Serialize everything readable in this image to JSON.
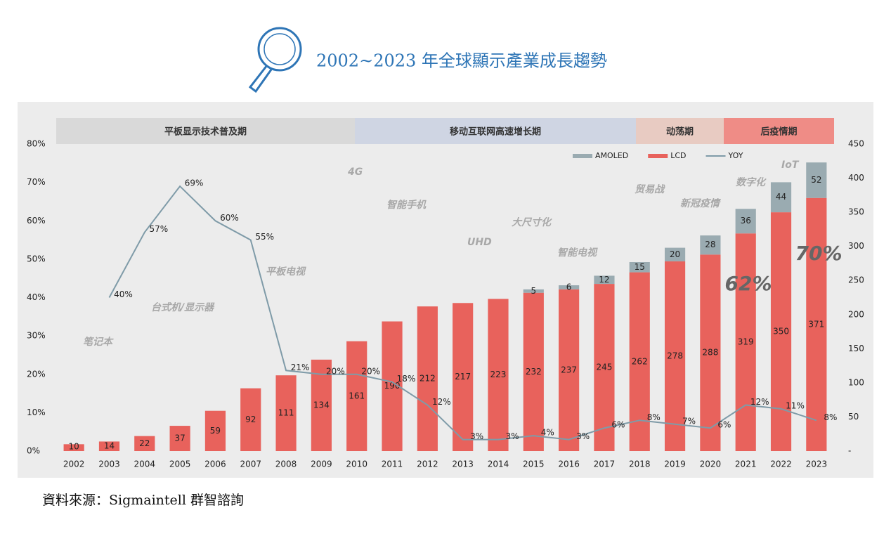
{
  "chart_data": {
    "type": "bar",
    "stacked": true,
    "title": "2002~2023 年全球顯示產業成長趨勢",
    "source": "資料來源：Sigmaintell 群智諮詢",
    "band_labels": [
      "平板显示技术普及期",
      "移动互联网高速增长期",
      "动荡期",
      "后疫情期"
    ],
    "annotations": [
      "62%",
      "70%"
    ],
    "background_words": [
      "4G",
      "智能手机",
      "UHD",
      "大尺寸化",
      "智能电视",
      "平板电视",
      "台式机/显示器",
      "笔记本",
      "贸易战",
      "新冠疫情",
      "数字化",
      "IoT"
    ],
    "categories": [
      "2002",
      "2003",
      "2004",
      "2005",
      "2006",
      "2007",
      "2008",
      "2009",
      "2010",
      "2011",
      "2012",
      "2013",
      "2014",
      "2015",
      "2016",
      "2017",
      "2018",
      "2019",
      "2020",
      "2021",
      "2022",
      "2023"
    ],
    "series": [
      {
        "name": "AMOLED",
        "color": "#9aabb1",
        "axis": "y2",
        "values": [
          null,
          null,
          null,
          null,
          null,
          null,
          null,
          null,
          null,
          null,
          null,
          null,
          null,
          5,
          6,
          12,
          15,
          20,
          28,
          36,
          44,
          52
        ]
      },
      {
        "name": "LCD",
        "color": "#e8625c",
        "axis": "y2",
        "values": [
          10,
          14,
          22,
          37,
          59,
          92,
          111,
          134,
          161,
          190,
          212,
          217,
          223,
          232,
          237,
          245,
          262,
          278,
          288,
          319,
          350,
          371
        ]
      },
      {
        "name": "YOY",
        "type": "line",
        "color": "#7f9ba8",
        "values": [
          null,
          40,
          57,
          69,
          60,
          55,
          21,
          20,
          20,
          18,
          12,
          3,
          3,
          4,
          3,
          6,
          8,
          7,
          6,
          12,
          11,
          8
        ],
        "value_labels": [
          null,
          "40%",
          "57%",
          "69%",
          "60%",
          "55%",
          "21%",
          "20%",
          "20%",
          "18%",
          "12%",
          "3%",
          "3%",
          "4%",
          "3%",
          "6%",
          "8%",
          "7%",
          "6%",
          "12%",
          "11%",
          "8%"
        ]
      }
    ],
    "ylim": [
      0,
      80
    ],
    "yticks": [
      {
        "value": 0,
        "label": "0%"
      },
      {
        "value": 10,
        "label": "10%"
      },
      {
        "value": 20,
        "label": "20%"
      },
      {
        "value": 30,
        "label": "30%"
      },
      {
        "value": 40,
        "label": "40%"
      },
      {
        "value": 50,
        "label": "50%"
      },
      {
        "value": 60,
        "label": "60%"
      },
      {
        "value": 70,
        "label": "70%"
      },
      {
        "value": 80,
        "label": "80%"
      }
    ],
    "y2lim": [
      0,
      450
    ],
    "y2ticks": [
      {
        "value": 0,
        "label": "-"
      },
      50,
      100,
      150,
      200,
      250,
      300,
      350,
      400,
      450
    ],
    "legend": "top-right"
  }
}
